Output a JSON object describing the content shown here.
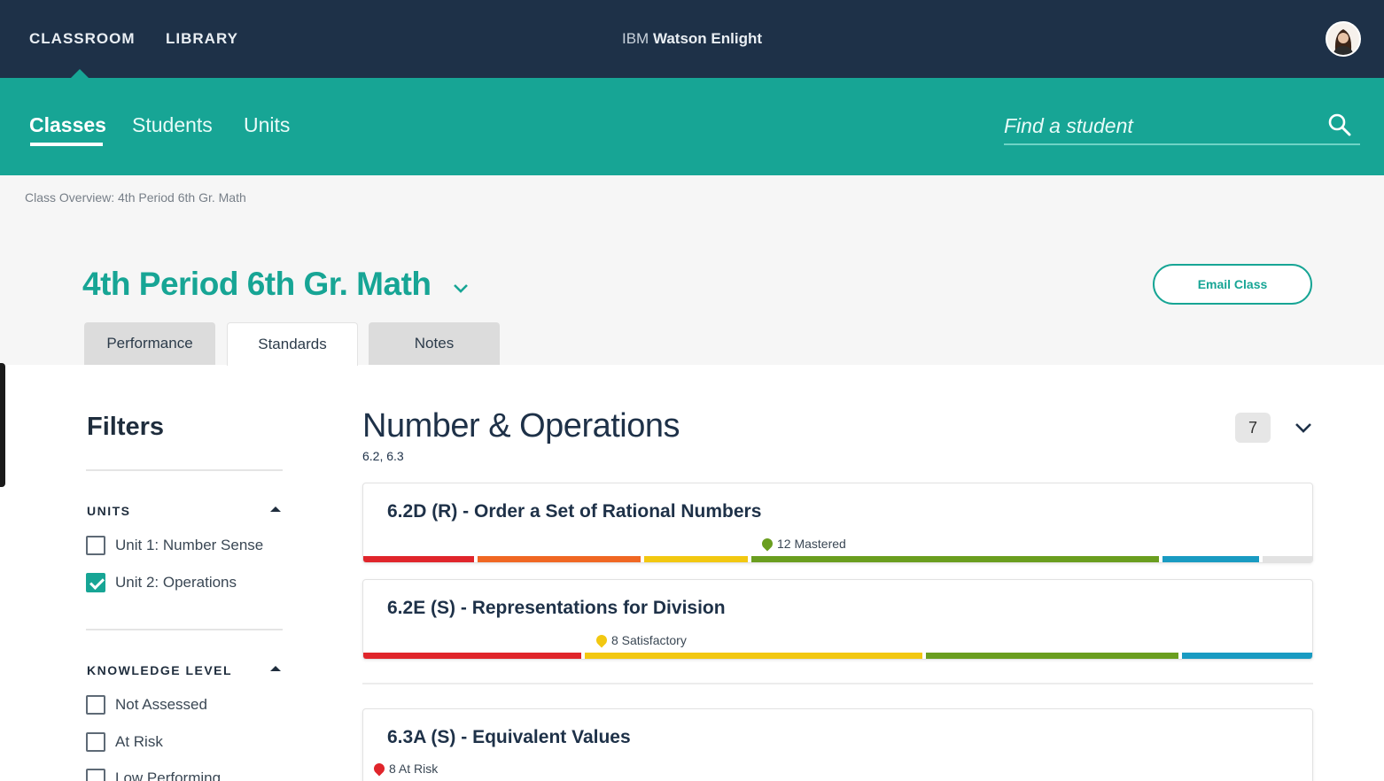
{
  "topbar": {
    "classroom": "CLASSROOM",
    "library": "LIBRARY",
    "brand_prefix": "IBM",
    "brand_name": "Watson Enlight",
    "avatar_icon": "user-avatar-icon"
  },
  "nav": {
    "tabs": [
      {
        "label": "Classes"
      },
      {
        "label": "Students"
      },
      {
        "label": "Units"
      }
    ],
    "search_placeholder": "Find a student",
    "search_icon": "search-icon"
  },
  "breadcrumb": "Class Overview: 4th Period 6th Gr. Math",
  "page_title": "4th Period 6th Gr. Math",
  "email_button": "Email Class",
  "tabs": [
    {
      "label": "Performance"
    },
    {
      "label": "Standards"
    },
    {
      "label": "Notes"
    }
  ],
  "active_tab": "Standards",
  "filters": {
    "title": "Filters",
    "units": {
      "heading": "UNITS",
      "options": [
        {
          "label": "Unit 1: Number Sense",
          "checked": false
        },
        {
          "label": "Unit 2: Operations",
          "checked": true
        }
      ]
    },
    "knowledge": {
      "heading": "KNOWLEDGE LEVEL",
      "options": [
        {
          "label": "Not Assessed",
          "checked": false
        },
        {
          "label": "At Risk",
          "checked": false
        },
        {
          "label": "Low Performing",
          "checked": false
        }
      ]
    }
  },
  "section": {
    "title": "Number & Operations",
    "subtitle": "6.2, 6.3",
    "count": "7",
    "standards": [
      {
        "title": "6.2D (R) - Order a Set of Rational Numbers",
        "status_text": "12 Mastered",
        "status_color": "#6a9e1f"
      },
      {
        "title": "6.2E (S) - Representations for Division",
        "status_text": "8 Satisfactory",
        "status_color": "#f2c811"
      },
      {
        "title": "6.3A (S) - Equivalent Values",
        "status_text": "8 At Risk",
        "status_color": "#e0252b"
      }
    ]
  },
  "colors": {
    "navy": "#1e3148",
    "teal": "#17a595",
    "at_risk": "#e0252b",
    "low": "#f06723",
    "satisfactory": "#f2c811",
    "mastered": "#6a9e1f",
    "advanced": "#199bc2",
    "unassessed": "#e2e2e2"
  }
}
